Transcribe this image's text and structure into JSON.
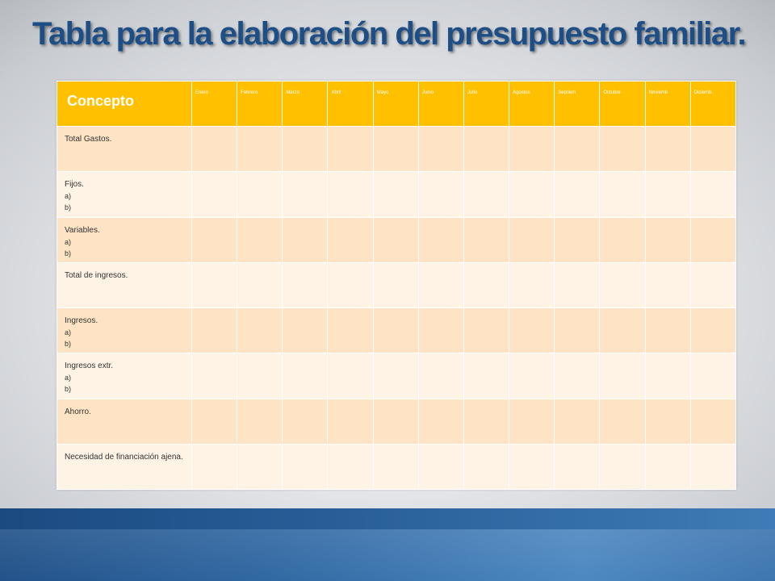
{
  "slide": {
    "title": "Tabla para la elaboración del presupuesto familiar."
  },
  "table": {
    "concept_header": "Concepto",
    "months": [
      "Enero",
      "Febrero",
      "Marzo",
      "Abril",
      "Mayo",
      "Junio",
      "Julio",
      "Agostos",
      "Septiem",
      "Octubre",
      "Noviemb",
      "Diciemb."
    ],
    "rows": [
      {
        "label": " Total Gastos.",
        "subs": []
      },
      {
        "label": "Fijos.",
        "subs": [
          "a)",
          "b)"
        ]
      },
      {
        "label": "Variables.",
        "subs": [
          "a)",
          "b)"
        ]
      },
      {
        "label": "Total de ingresos.",
        "subs": []
      },
      {
        "label": "Ingresos.",
        "subs": [
          "a)",
          "b)"
        ]
      },
      {
        "label": "Ingresos extr.",
        "subs": [
          "a)",
          "b)"
        ]
      },
      {
        "label": "Ahorro.",
        "subs": []
      },
      {
        "label": "Necesidad de financiación ajena.",
        "subs": []
      }
    ]
  },
  "colors": {
    "title": "#1d4e86",
    "header_bg": "#ffc000",
    "row_odd": "#fee3c4",
    "row_even": "#fff3e5",
    "band": "#2d66a1"
  }
}
